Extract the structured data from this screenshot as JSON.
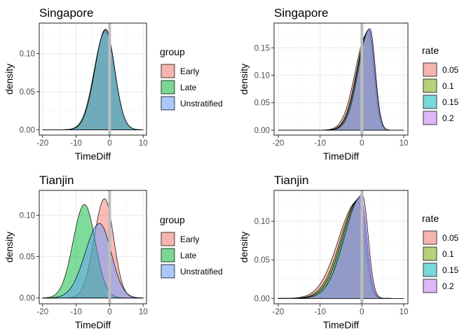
{
  "chart_data": [
    {
      "type": "area",
      "title": "Singapore",
      "xlabel": "TimeDiff",
      "ylabel": "density",
      "xlim": [
        -21,
        11
      ],
      "ylim": [
        -0.007,
        0.14
      ],
      "xticks": [
        -20,
        -10,
        0,
        10
      ],
      "yticks": [
        0.0,
        0.05,
        0.1
      ],
      "ytick_labels": [
        "0.00",
        "0.05",
        "0.10"
      ],
      "vline": 0,
      "grid": true,
      "legend": {
        "title": "group",
        "placement": "right"
      },
      "series": [
        {
          "name": "Early",
          "color": "#F8766D",
          "peak_x": -1.2,
          "peak_y": 0.132,
          "sd_left": 3.2,
          "sd_right": 2.7
        },
        {
          "name": "Late",
          "color": "#00BA38",
          "peak_x": -1.3,
          "peak_y": 0.129,
          "sd_left": 3.3,
          "sd_right": 2.8
        },
        {
          "name": "Unstratified",
          "color": "#619CFF",
          "peak_x": -1.2,
          "peak_y": 0.131,
          "sd_left": 3.2,
          "sd_right": 2.75
        }
      ]
    },
    {
      "type": "area",
      "title": "Singapore",
      "xlabel": "TimeDiff",
      "ylabel": "density",
      "xlim": [
        -21,
        11
      ],
      "ylim": [
        -0.009,
        0.195
      ],
      "xticks": [
        -20,
        -10,
        0,
        10
      ],
      "yticks": [
        0.0,
        0.05,
        0.1,
        0.15
      ],
      "ytick_labels": [
        "0.00",
        "0.05",
        "0.10",
        "0.15"
      ],
      "vline": 0,
      "grid": true,
      "legend": {
        "title": "rate",
        "placement": "right"
      },
      "series": [
        {
          "name": "0.05",
          "color": "#F8766D",
          "peak_x": 1.3,
          "peak_y": 0.176,
          "sd_left": 2.9,
          "sd_right": 1.4
        },
        {
          "name": "0.1",
          "color": "#7CAE00",
          "peak_x": 1.6,
          "peak_y": 0.181,
          "sd_left": 2.8,
          "sd_right": 1.35
        },
        {
          "name": "0.15",
          "color": "#00BFC4",
          "peak_x": 1.7,
          "peak_y": 0.183,
          "sd_left": 2.75,
          "sd_right": 1.35
        },
        {
          "name": "0.2",
          "color": "#C77CFF",
          "peak_x": 1.9,
          "peak_y": 0.185,
          "sd_left": 2.7,
          "sd_right": 1.3
        }
      ]
    },
    {
      "type": "area",
      "title": "Tianjin",
      "xlabel": "TimeDiff",
      "ylabel": "density",
      "xlim": [
        -21,
        11
      ],
      "ylim": [
        -0.007,
        0.13
      ],
      "xticks": [
        -20,
        -10,
        0,
        10
      ],
      "yticks": [
        0.0,
        0.05,
        0.1
      ],
      "ytick_labels": [
        "0.00",
        "0.05",
        "0.10"
      ],
      "vline": 0,
      "grid": true,
      "legend": {
        "title": "group",
        "placement": "right"
      },
      "series": [
        {
          "name": "Early",
          "color": "#F8766D",
          "peak_x": -1.5,
          "peak_y": 0.12,
          "sd_left": 3.1,
          "sd_right": 2.7
        },
        {
          "name": "Late",
          "color": "#00BA38",
          "peak_x": -7.5,
          "peak_y": 0.113,
          "sd_left": 3.4,
          "sd_right": 3.2
        },
        {
          "name": "Unstratified",
          "color": "#619CFF",
          "peak_x": -3.0,
          "peak_y": 0.09,
          "sd_left": 4.3,
          "sd_right": 3.5
        }
      ]
    },
    {
      "type": "area",
      "title": "Tianjin",
      "xlabel": "TimeDiff",
      "ylabel": "density",
      "xlim": [
        -21,
        11
      ],
      "ylim": [
        -0.007,
        0.14
      ],
      "xticks": [
        -20,
        -10,
        0,
        10
      ],
      "yticks": [
        0.0,
        0.05,
        0.1
      ],
      "ytick_labels": [
        "0.00",
        "0.05",
        "0.10"
      ],
      "vline": 0,
      "grid": true,
      "legend": {
        "title": "rate",
        "placement": "right"
      },
      "series": [
        {
          "name": "0.05",
          "color": "#F8766D",
          "peak_x": -1.0,
          "peak_y": 0.126,
          "sd_left": 4.6,
          "sd_right": 1.6
        },
        {
          "name": "0.1",
          "color": "#7CAE00",
          "peak_x": -0.6,
          "peak_y": 0.129,
          "sd_left": 4.4,
          "sd_right": 1.5
        },
        {
          "name": "0.15",
          "color": "#00BFC4",
          "peak_x": -0.3,
          "peak_y": 0.131,
          "sd_left": 4.3,
          "sd_right": 1.45
        },
        {
          "name": "0.2",
          "color": "#C77CFF",
          "peak_x": 0.1,
          "peak_y": 0.134,
          "sd_left": 4.2,
          "sd_right": 1.4
        }
      ]
    }
  ]
}
